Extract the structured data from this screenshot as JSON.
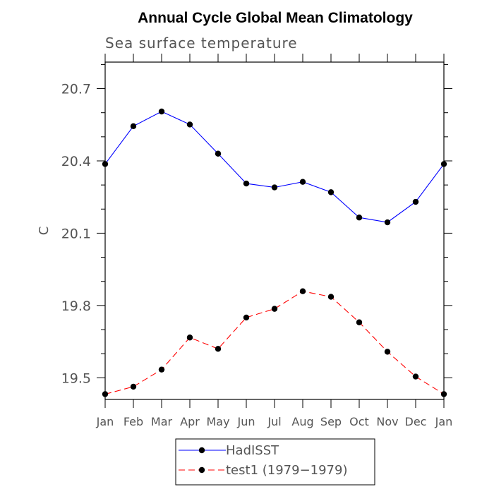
{
  "chart_data": {
    "type": "line",
    "title": "Annual Cycle Global Mean Climatology",
    "subtitle": "Sea surface temperature",
    "ylabel": "C",
    "xlabel": "",
    "categories": [
      "Jan",
      "Feb",
      "Mar",
      "Apr",
      "May",
      "Jun",
      "Jul",
      "Aug",
      "Sep",
      "Oct",
      "Nov",
      "Dec",
      "Jan"
    ],
    "ylim": [
      19.41,
      20.81
    ],
    "yticks": [
      19.5,
      19.8,
      20.1,
      20.4,
      20.7
    ],
    "ytick_labels": [
      "19.5",
      "19.8",
      "20.1",
      "20.4",
      "20.7"
    ],
    "grid": false,
    "legend_position": "bottom-center",
    "series": [
      {
        "name": "HadISST",
        "color": "#0000ff",
        "dash": "solid",
        "marker": "filled-circle",
        "values": [
          20.387,
          20.544,
          20.605,
          20.551,
          20.43,
          20.306,
          20.29,
          20.313,
          20.27,
          20.165,
          20.145,
          20.23,
          20.387
        ]
      },
      {
        "name": "test1 (1979−1979)",
        "color": "#ff0000",
        "dash": "dashed",
        "marker": "filled-circle",
        "values": [
          19.432,
          19.463,
          19.534,
          19.667,
          19.62,
          19.75,
          19.786,
          19.859,
          19.836,
          19.73,
          19.608,
          19.505,
          19.432
        ]
      }
    ]
  }
}
